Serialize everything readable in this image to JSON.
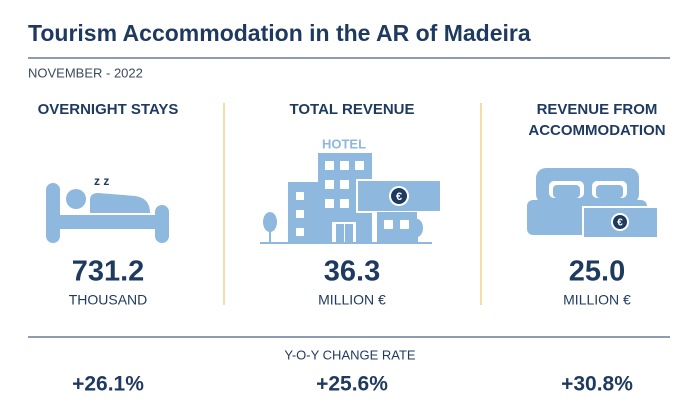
{
  "header": {
    "title": "Tourism Accommodation in the AR of Madeira",
    "subtitle": "NOVEMBER - 2022"
  },
  "indicators": [
    {
      "label": "OVERNIGHT STAYS",
      "value": "731.2",
      "unit": "THOUSAND",
      "change": "+26.1%"
    },
    {
      "label": "TOTAL REVENUE",
      "value": "36.3",
      "unit": "MILLION €",
      "change": "+25.6%"
    },
    {
      "label": "REVENUE FROM ACCOMMODATION",
      "value": "25.0",
      "unit": "MILLION €",
      "change": "+30.8%"
    }
  ],
  "icons": {
    "sleep": "z z",
    "hotel_sign": "HOTEL",
    "currency": "€"
  },
  "change_heading": "Y-O-Y CHANGE RATE"
}
